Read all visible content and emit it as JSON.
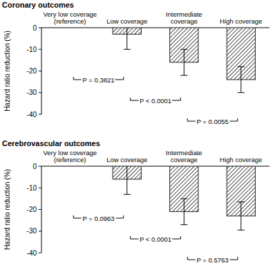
{
  "chart_data": [
    {
      "type": "bar",
      "title": "Coronary outcomes",
      "y_label": "Hazard ratio reduction (%)",
      "categories": [
        "Very low coverage (reference)",
        "Low coverage",
        "Intermediate coverage",
        "High coverage"
      ],
      "values": [
        0,
        -3,
        -16,
        -24
      ],
      "errors": [
        null,
        7,
        6,
        6
      ],
      "color": "#222222",
      "ylim": [
        -40,
        0
      ],
      "yticks": [
        0,
        -10,
        -20,
        -30,
        -40
      ],
      "annotations": [
        {
          "text": "P = 0.3821",
          "between": [
            0,
            1
          ]
        },
        {
          "text": "P < 0.0001",
          "between": [
            1,
            2
          ]
        },
        {
          "text": "P = 0.0055",
          "between": [
            2,
            3
          ]
        }
      ]
    },
    {
      "type": "bar",
      "title": "Cerebrovascular outcomes",
      "y_label": "Hazard ratio reduction (%)",
      "categories": [
        "Very low coverage (reference)",
        "Low coverage",
        "Intermediate coverage",
        "High coverage"
      ],
      "values": [
        0,
        -6,
        -21,
        -23
      ],
      "errors": [
        null,
        7,
        6,
        6.5
      ],
      "color": "#222222",
      "ylim": [
        -40,
        0
      ],
      "yticks": [
        0,
        -10,
        -20,
        -30,
        -40
      ],
      "annotations": [
        {
          "text": "P = 0.0963",
          "between": [
            0,
            1
          ]
        },
        {
          "text": "P < 0.0001",
          "between": [
            1,
            2
          ]
        },
        {
          "text": "P = 0.5763",
          "between": [
            2,
            3
          ]
        }
      ]
    }
  ]
}
